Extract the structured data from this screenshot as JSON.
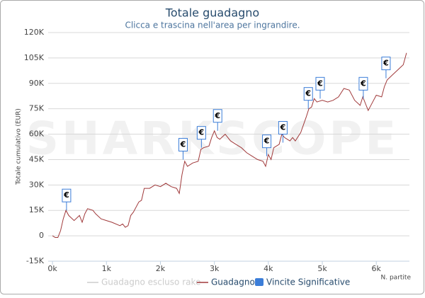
{
  "chart_data": {
    "type": "line",
    "title": "Totale guadagno",
    "subtitle": "Clicca e trascina nell'area per ingrandire.",
    "watermark": "SHARKSCOPE",
    "y_label": "Totale cumulativo (EUR)",
    "x_label": "N. partite",
    "xlim": [
      -80,
      6614
    ],
    "ylim": [
      -15000,
      120000
    ],
    "xticks": [
      {
        "value": 0,
        "label": "0k"
      },
      {
        "value": 1000,
        "label": "1k"
      },
      {
        "value": 2000,
        "label": "2k"
      },
      {
        "value": 3000,
        "label": "3k"
      },
      {
        "value": 4000,
        "label": "4k"
      },
      {
        "value": 5000,
        "label": "5k"
      },
      {
        "value": 6000,
        "label": "6k"
      }
    ],
    "yticks": [
      {
        "value": -15000,
        "label": "-15K"
      },
      0,
      {
        "value": 15000,
        "label": "15K"
      },
      {
        "value": 30000,
        "label": "30K"
      },
      {
        "value": 45000,
        "label": "45K"
      },
      {
        "value": 60000,
        "label": "60K"
      },
      {
        "value": 75000,
        "label": "75K"
      },
      {
        "value": 90000,
        "label": "90K"
      },
      {
        "value": 105000,
        "label": "105K"
      },
      {
        "value": 120000,
        "label": "120K"
      }
    ],
    "grid": true,
    "series": [
      {
        "name": "Guadagno escluso rake",
        "color": "#cccccc",
        "hidden": true
      },
      {
        "name": "Guadagno",
        "color": "#a0393a",
        "x": [
          0,
          50,
          100,
          150,
          200,
          250,
          300,
          400,
          500,
          550,
          600,
          650,
          750,
          800,
          900,
          1000,
          1100,
          1250,
          1300,
          1350,
          1400,
          1450,
          1500,
          1600,
          1650,
          1700,
          1800,
          1900,
          2000,
          2100,
          2200,
          2300,
          2350,
          2400,
          2450,
          2500,
          2600,
          2700,
          2750,
          2800,
          2900,
          2950,
          3000,
          3050,
          3100,
          3200,
          3300,
          3400,
          3500,
          3600,
          3700,
          3800,
          3900,
          3950,
          4000,
          4050,
          4100,
          4200,
          4250,
          4300,
          4350,
          4400,
          4450,
          4500,
          4600,
          4700,
          4750,
          4800,
          4850,
          4900,
          5000,
          5100,
          5200,
          5300,
          5400,
          5500,
          5600,
          5700,
          5750,
          5800,
          5850,
          5950,
          6000,
          6100,
          6150,
          6200,
          6300,
          6400,
          6500,
          6560
        ],
        "values": [
          0,
          -1000,
          -1000,
          3000,
          10000,
          15000,
          12000,
          9000,
          12000,
          8000,
          13000,
          16000,
          15000,
          13000,
          10000,
          9000,
          8000,
          6000,
          7000,
          5000,
          6000,
          12000,
          14000,
          20000,
          21000,
          28000,
          28000,
          30000,
          29000,
          31000,
          29000,
          28000,
          25000,
          36000,
          44000,
          41000,
          43000,
          44000,
          51000,
          52000,
          53000,
          58000,
          62000,
          58000,
          57000,
          60000,
          56000,
          54000,
          52000,
          49000,
          47000,
          45000,
          44000,
          41000,
          48000,
          45000,
          52000,
          54000,
          60000,
          58000,
          57000,
          56000,
          58000,
          56000,
          61000,
          70000,
          75000,
          76000,
          81000,
          79000,
          80000,
          79000,
          80000,
          82000,
          87000,
          86000,
          80000,
          77000,
          82000,
          78000,
          74000,
          80000,
          83000,
          82000,
          88000,
          92000,
          95000,
          98000,
          101000,
          108000
        ]
      },
      {
        "name": "Vincite Significative",
        "color": "#3b7dd8",
        "label": "€",
        "x": [
          260,
          2420,
          2760,
          3060,
          3970,
          4270,
          4740,
          4960,
          5760,
          6180
        ],
        "values": [
          15000,
          45000,
          52000,
          62000,
          47000,
          55000,
          75000,
          81000,
          81000,
          93000
        ]
      }
    ]
  }
}
